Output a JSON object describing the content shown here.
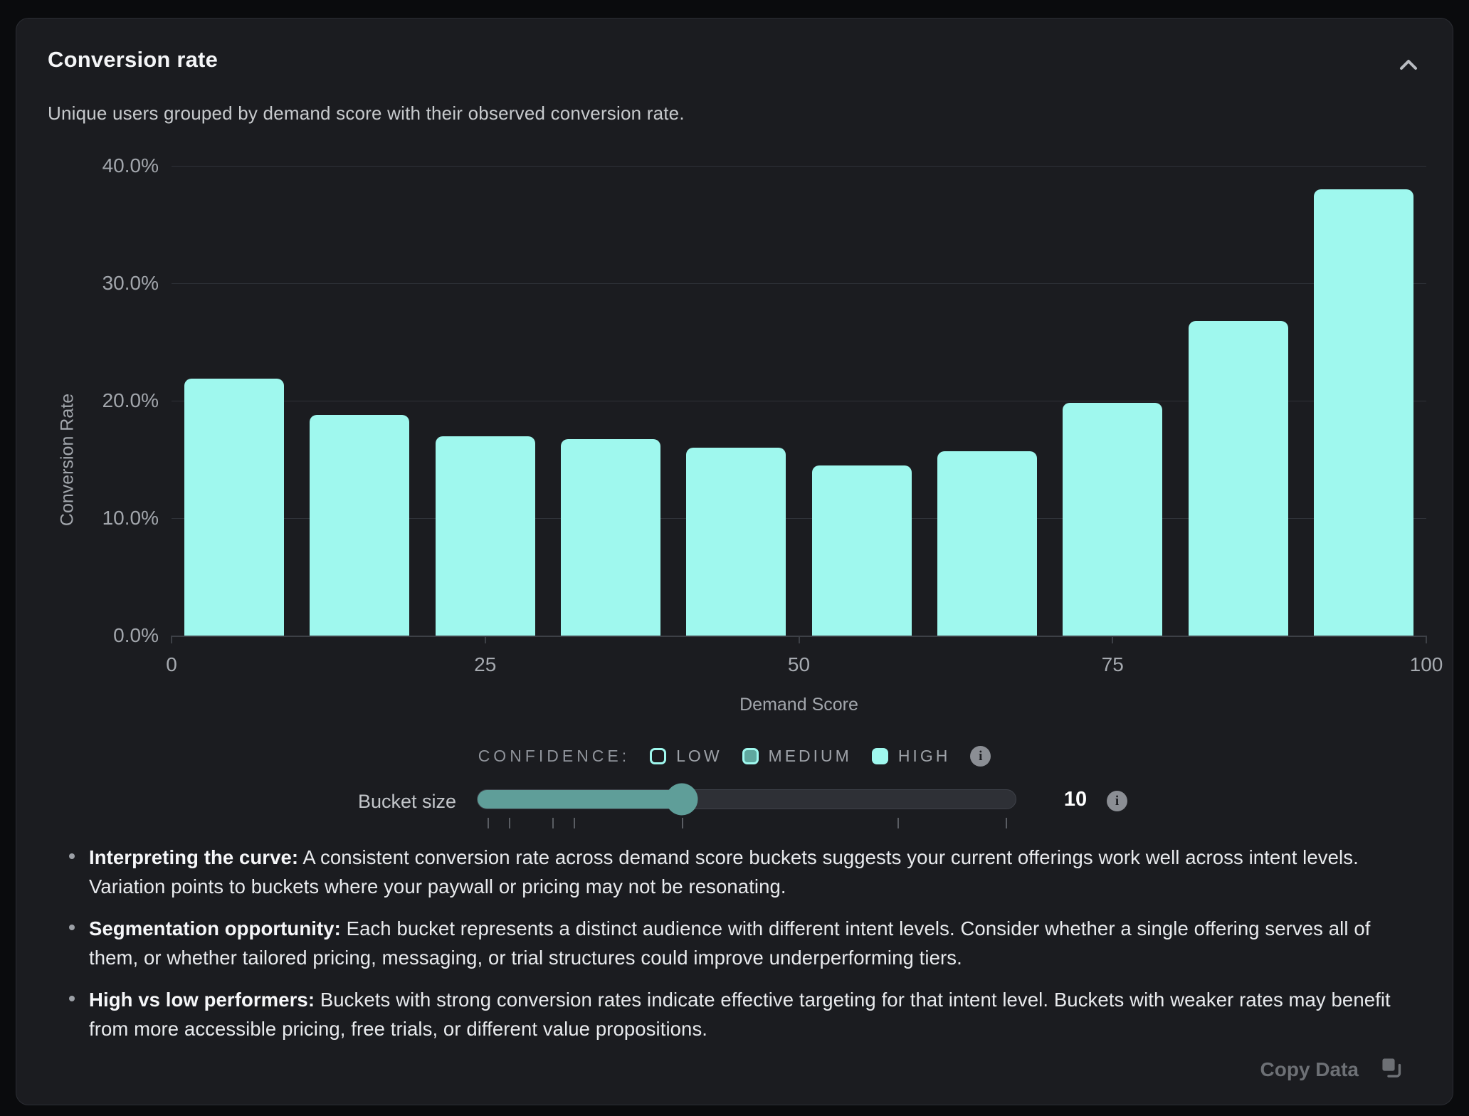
{
  "card": {
    "title": "Conversion rate",
    "subtitle": "Unique users grouped by demand score with their observed conversion rate."
  },
  "chart_data": {
    "type": "bar",
    "title": "Conversion rate",
    "xlabel": "Demand Score",
    "ylabel": "Conversion Rate",
    "xlim": [
      0,
      100
    ],
    "ylim": [
      0,
      40
    ],
    "grid": true,
    "bar_color": "#9ff8ee",
    "bucket_size": 10,
    "categories": [
      "0-10",
      "10-20",
      "20-30",
      "30-40",
      "40-50",
      "50-60",
      "60-70",
      "70-80",
      "80-90",
      "90-100"
    ],
    "values": [
      21.9,
      18.8,
      17.0,
      16.7,
      16.0,
      14.5,
      15.7,
      19.8,
      26.8,
      38.0
    ],
    "y_ticks": [
      {
        "value": 0,
        "label": "0.0%"
      },
      {
        "value": 10,
        "label": "10.0%"
      },
      {
        "value": 20,
        "label": "20.0%"
      },
      {
        "value": 30,
        "label": "30.0%"
      },
      {
        "value": 40,
        "label": "40.0%"
      }
    ],
    "x_ticks": [
      {
        "value": 0,
        "label": "0"
      },
      {
        "value": 25,
        "label": "25"
      },
      {
        "value": 50,
        "label": "50"
      },
      {
        "value": 75,
        "label": "75"
      },
      {
        "value": 100,
        "label": "100"
      }
    ]
  },
  "legend": {
    "label": "CONFIDENCE:",
    "items": [
      {
        "label": "LOW",
        "style": "outline"
      },
      {
        "label": "MEDIUM",
        "style": "half"
      },
      {
        "label": "HIGH",
        "style": "solid"
      }
    ],
    "info_icon": "info-circle"
  },
  "slider": {
    "label": "Bucket size",
    "value": "10",
    "fill_percent": 38,
    "tick_positions_percent": [
      2,
      6,
      14,
      18,
      38,
      78,
      98
    ],
    "info_icon": "info-circle"
  },
  "notes": [
    {
      "title": "Interpreting the curve:",
      "text": "A consistent conversion rate across demand score buckets suggests your current offerings work well across intent levels. Variation points to buckets where your paywall or pricing may not be resonating."
    },
    {
      "title": "Segmentation opportunity:",
      "text": "Each bucket represents a distinct audience with different intent levels. Consider whether a single offering serves all of them, or whether tailored pricing, messaging, or trial structures could improve underperforming tiers."
    },
    {
      "title": "High vs low performers:",
      "text": "Buckets with strong conversion rates indicate effective targeting for that intent level. Buckets with weaker rates may benefit from more accessible pricing, free trials, or different value propositions."
    }
  ],
  "footer": {
    "copy_label": "Copy Data",
    "copy_icon": "copy-icon"
  },
  "colors": {
    "page_bg": "#0a0b0d",
    "card_bg": "#1b1c20",
    "card_border": "#2b2d33",
    "bar": "#9ff8ee",
    "slider_teal": "#5f9e99",
    "medium_swatch_fill": "#5fa89f",
    "text_primary": "#f4f5f7",
    "text_secondary": "#c7cacd",
    "text_muted": "#a2a6ac"
  }
}
